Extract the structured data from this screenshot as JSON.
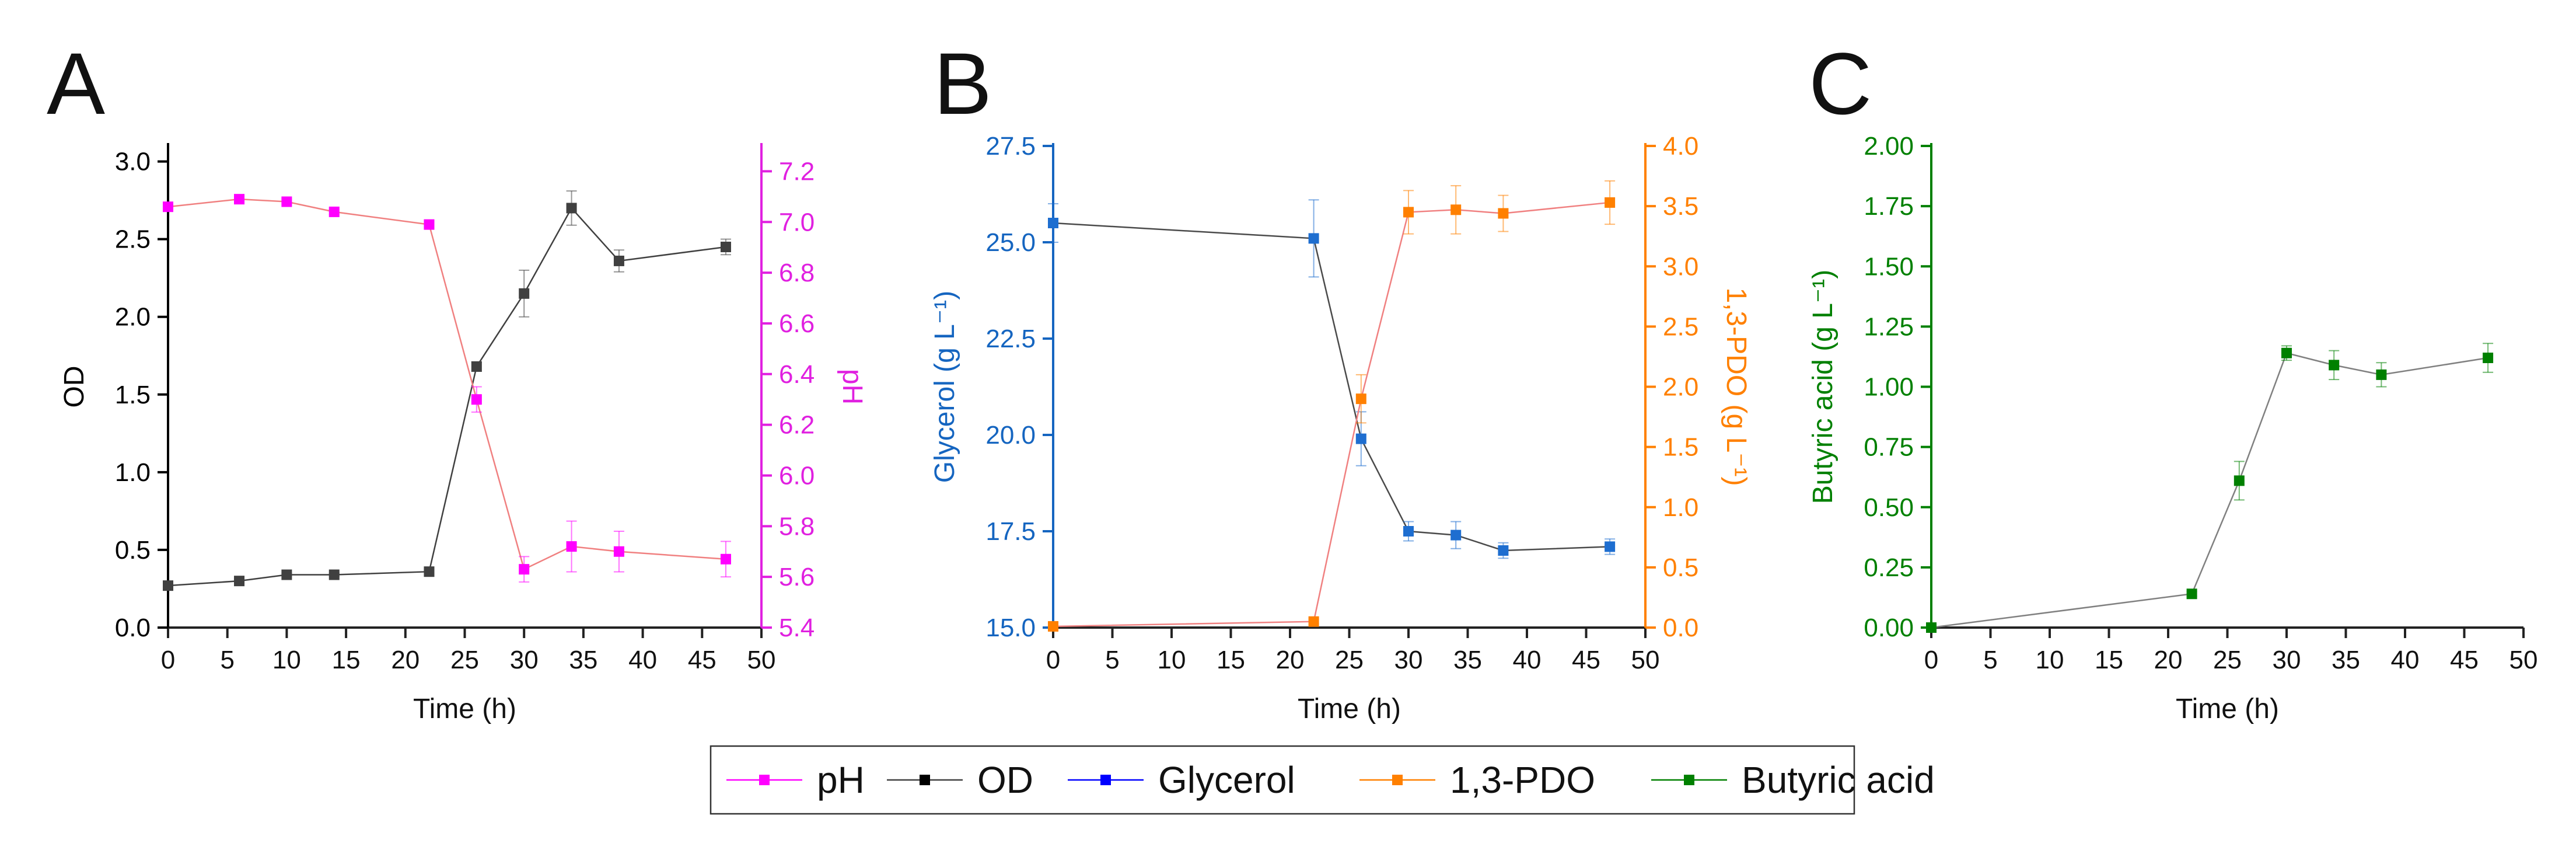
{
  "figure": {
    "legend": [
      {
        "label": "pH",
        "color": "#ff00ff"
      },
      {
        "label": "OD",
        "color": "#000000"
      },
      {
        "label": "Glycerol",
        "color": "#0000ff"
      },
      {
        "label": "1,3-PDO",
        "color": "#ff8000"
      },
      {
        "label": "Butyric acid",
        "color": "#008000"
      }
    ]
  },
  "chart_data": [
    {
      "panel": "A",
      "type": "line",
      "xlabel": "Time (h)",
      "xlim": [
        0,
        50
      ],
      "xticks": [
        "0",
        "5",
        "10",
        "15",
        "20",
        "25",
        "30",
        "35",
        "40",
        "45",
        "50"
      ],
      "left_axis": {
        "label": "OD",
        "color": "#000000",
        "ylim": [
          0,
          3.1
        ],
        "ticks": [
          "0.0",
          "0.5",
          "1.0",
          "1.5",
          "2.0",
          "2.5",
          "3.0"
        ]
      },
      "right_axis": {
        "label": "pH",
        "color": "#e020e0",
        "ylim": [
          5.4,
          7.3
        ],
        "ticks": [
          "5.4",
          "5.6",
          "5.8",
          "6.0",
          "6.2",
          "6.4",
          "6.6",
          "6.8",
          "7.0",
          "7.2"
        ]
      },
      "series": [
        {
          "name": "OD",
          "axis": "left",
          "color": "#404040",
          "marker_color": "#404040",
          "x": [
            0,
            6,
            10,
            14,
            22,
            26,
            30,
            34,
            38,
            47
          ],
          "y": [
            0.27,
            0.3,
            0.34,
            0.34,
            0.36,
            1.68,
            2.15,
            2.7,
            2.36,
            2.45
          ],
          "err": [
            0.01,
            0.01,
            0.01,
            0.01,
            0.01,
            0.03,
            0.15,
            0.11,
            0.07,
            0.05
          ]
        },
        {
          "name": "pH",
          "axis": "right",
          "color": "#f08080",
          "marker_color": "#ff00ff",
          "x": [
            0,
            6,
            10,
            14,
            22,
            26,
            30,
            34,
            38,
            47
          ],
          "y": [
            7.06,
            7.09,
            7.08,
            7.04,
            6.99,
            6.3,
            5.63,
            5.72,
            5.7,
            5.67
          ],
          "err": [
            0.01,
            0.01,
            0.01,
            0.01,
            0.01,
            0.05,
            0.05,
            0.1,
            0.08,
            0.07
          ]
        }
      ]
    },
    {
      "panel": "B",
      "type": "line",
      "xlabel": "Time (h)",
      "xlim": [
        0,
        50
      ],
      "xticks": [
        "0",
        "5",
        "10",
        "15",
        "20",
        "25",
        "30",
        "35",
        "40",
        "45",
        "50"
      ],
      "left_axis": {
        "label": "Glycerol (g L⁻¹)",
        "color": "#1565c0",
        "ylim": [
          15.0,
          27.5
        ],
        "ticks": [
          "15.0",
          "17.5",
          "20.0",
          "22.5",
          "25.0",
          "27.5"
        ]
      },
      "right_axis": {
        "label": "1,3-PDO (g L⁻¹)",
        "color": "#ff8000",
        "ylim": [
          0,
          4.0
        ],
        "ticks": [
          "0.0",
          "0.5",
          "1.0",
          "1.5",
          "2.0",
          "2.5",
          "3.0",
          "3.5",
          "4.0"
        ]
      },
      "series": [
        {
          "name": "Glycerol",
          "axis": "left",
          "color": "#4a4a4a",
          "marker_color": "#1e6ed0",
          "x": [
            0,
            22,
            26,
            30,
            34,
            38,
            47
          ],
          "y": [
            25.5,
            25.1,
            19.9,
            17.5,
            17.4,
            17.0,
            17.1
          ],
          "err": [
            0.5,
            1.0,
            0.7,
            0.25,
            0.35,
            0.2,
            0.2
          ]
        },
        {
          "name": "1,3-PDO",
          "axis": "right",
          "color": "#f08080",
          "marker_color": "#ff8000",
          "x": [
            0,
            22,
            26,
            30,
            34,
            38,
            47
          ],
          "y": [
            0.01,
            0.05,
            1.9,
            3.45,
            3.47,
            3.44,
            3.53
          ],
          "err": [
            0.01,
            0.02,
            0.2,
            0.18,
            0.2,
            0.15,
            0.18
          ]
        }
      ]
    },
    {
      "panel": "C",
      "type": "line",
      "xlabel": "Time (h)",
      "xlim": [
        0,
        50
      ],
      "xticks": [
        "0",
        "5",
        "10",
        "15",
        "20",
        "25",
        "30",
        "35",
        "40",
        "45",
        "50"
      ],
      "left_axis": {
        "label": "Butyric acid (g L⁻¹)",
        "color": "#008000",
        "ylim": [
          0,
          2.0
        ],
        "ticks": [
          "0.00",
          "0.25",
          "0.50",
          "0.75",
          "1.00",
          "1.25",
          "1.50",
          "1.75",
          "2.00"
        ]
      },
      "series": [
        {
          "name": "Butyric acid",
          "axis": "left",
          "color": "#808080",
          "marker_color": "#008000",
          "x": [
            0,
            22,
            26,
            30,
            34,
            38,
            47
          ],
          "y": [
            0.0,
            0.14,
            0.61,
            1.14,
            1.09,
            1.05,
            1.12
          ],
          "err": [
            0.005,
            0.01,
            0.08,
            0.03,
            0.06,
            0.05,
            0.06
          ]
        }
      ]
    }
  ]
}
